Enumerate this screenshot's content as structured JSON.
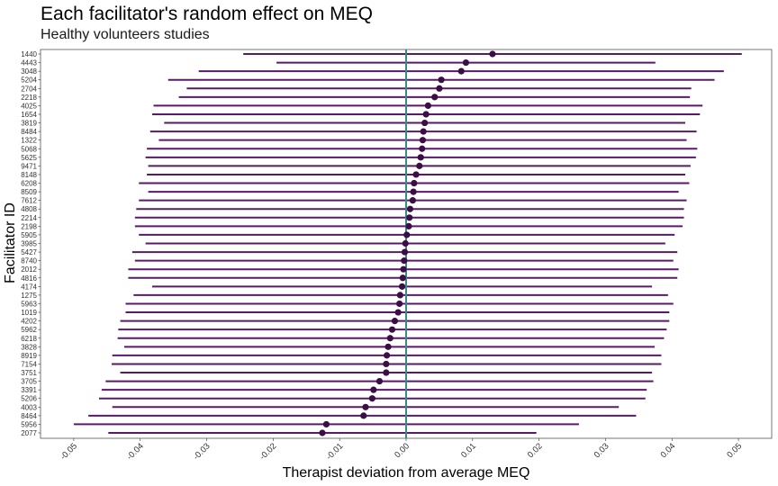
{
  "chart_data": {
    "type": "forest",
    "title": "Each facilitator's random effect on MEQ",
    "subtitle": "Healthy volunteers studies",
    "xlabel": "Therapist deviation from average MEQ",
    "ylabel": "Facilitator ID",
    "xlim": [
      -0.055,
      0.055
    ],
    "xticks": [
      "-0.05",
      "-0.04",
      "-0.03",
      "-0.02",
      "-0.01",
      "0.00",
      "0.01",
      "0.02",
      "0.03",
      "0.04",
      "0.05"
    ],
    "reference_line": 0.0,
    "colors": {
      "points": "#3b0f45",
      "intervals": "#5a1a68",
      "reference": "#3a8a8c"
    },
    "grid": false,
    "facilitators": [
      {
        "id": "1440",
        "estimate": 0.013,
        "lower": -0.0245,
        "upper": 0.0505
      },
      {
        "id": "4443",
        "estimate": 0.009,
        "lower": -0.0195,
        "upper": 0.0375
      },
      {
        "id": "3048",
        "estimate": 0.0083,
        "lower": -0.0312,
        "upper": 0.0478
      },
      {
        "id": "5204",
        "estimate": 0.0053,
        "lower": -0.0358,
        "upper": 0.0464
      },
      {
        "id": "2704",
        "estimate": 0.005,
        "lower": -0.033,
        "upper": 0.0429
      },
      {
        "id": "2218",
        "estimate": 0.0043,
        "lower": -0.0342,
        "upper": 0.0427
      },
      {
        "id": "4025",
        "estimate": 0.0033,
        "lower": -0.038,
        "upper": 0.0446
      },
      {
        "id": "1654",
        "estimate": 0.003,
        "lower": -0.0382,
        "upper": 0.0442
      },
      {
        "id": "3819",
        "estimate": 0.0028,
        "lower": -0.0364,
        "upper": 0.042
      },
      {
        "id": "8484",
        "estimate": 0.0026,
        "lower": -0.0385,
        "upper": 0.0437
      },
      {
        "id": "1322",
        "estimate": 0.0025,
        "lower": -0.0372,
        "upper": 0.0422
      },
      {
        "id": "5068",
        "estimate": 0.0024,
        "lower": -0.039,
        "upper": 0.0438
      },
      {
        "id": "5625",
        "estimate": 0.0022,
        "lower": -0.0392,
        "upper": 0.0436
      },
      {
        "id": "9471",
        "estimate": 0.002,
        "lower": -0.0388,
        "upper": 0.0428
      },
      {
        "id": "8148",
        "estimate": 0.0015,
        "lower": -0.039,
        "upper": 0.042
      },
      {
        "id": "6208",
        "estimate": 0.0012,
        "lower": -0.0402,
        "upper": 0.0426
      },
      {
        "id": "8509",
        "estimate": 0.0011,
        "lower": -0.0388,
        "upper": 0.041
      },
      {
        "id": "7612",
        "estimate": 0.001,
        "lower": -0.0402,
        "upper": 0.0422
      },
      {
        "id": "4808",
        "estimate": 0.0006,
        "lower": -0.0406,
        "upper": 0.0418
      },
      {
        "id": "2214",
        "estimate": 0.0005,
        "lower": -0.0408,
        "upper": 0.0418
      },
      {
        "id": "2198",
        "estimate": 0.0004,
        "lower": -0.0408,
        "upper": 0.0416
      },
      {
        "id": "5905",
        "estimate": 0.0001,
        "lower": -0.0402,
        "upper": 0.0404
      },
      {
        "id": "3985",
        "estimate": -0.0001,
        "lower": -0.0392,
        "upper": 0.039
      },
      {
        "id": "5427",
        "estimate": -0.0002,
        "lower": -0.0412,
        "upper": 0.0408
      },
      {
        "id": "8740",
        "estimate": -0.0003,
        "lower": -0.0408,
        "upper": 0.0402
      },
      {
        "id": "2012",
        "estimate": -0.0004,
        "lower": -0.0418,
        "upper": 0.041
      },
      {
        "id": "4816",
        "estimate": -0.0005,
        "lower": -0.0418,
        "upper": 0.0408
      },
      {
        "id": "4174",
        "estimate": -0.0006,
        "lower": -0.0382,
        "upper": 0.037
      },
      {
        "id": "1275",
        "estimate": -0.0009,
        "lower": -0.041,
        "upper": 0.0394
      },
      {
        "id": "5963",
        "estimate": -0.001,
        "lower": -0.0422,
        "upper": 0.0402
      },
      {
        "id": "1019",
        "estimate": -0.0012,
        "lower": -0.0422,
        "upper": 0.0396
      },
      {
        "id": "4202",
        "estimate": -0.0017,
        "lower": -0.043,
        "upper": 0.0396
      },
      {
        "id": "5962",
        "estimate": -0.0021,
        "lower": -0.0433,
        "upper": 0.0392
      },
      {
        "id": "6218",
        "estimate": -0.0024,
        "lower": -0.0434,
        "upper": 0.0388
      },
      {
        "id": "3828",
        "estimate": -0.0027,
        "lower": -0.0424,
        "upper": 0.0374
      },
      {
        "id": "8919",
        "estimate": -0.0029,
        "lower": -0.0442,
        "upper": 0.0384
      },
      {
        "id": "7154",
        "estimate": -0.003,
        "lower": -0.0443,
        "upper": 0.0384
      },
      {
        "id": "3751",
        "estimate": -0.003,
        "lower": -0.043,
        "upper": 0.037
      },
      {
        "id": "3705",
        "estimate": -0.004,
        "lower": -0.0452,
        "upper": 0.0372
      },
      {
        "id": "3391",
        "estimate": -0.0049,
        "lower": -0.0458,
        "upper": 0.0362
      },
      {
        "id": "5206",
        "estimate": -0.0051,
        "lower": -0.0462,
        "upper": 0.036
      },
      {
        "id": "4003",
        "estimate": -0.0061,
        "lower": -0.0442,
        "upper": 0.032
      },
      {
        "id": "8464",
        "estimate": -0.0064,
        "lower": -0.0478,
        "upper": 0.0346
      },
      {
        "id": "5956",
        "estimate": -0.012,
        "lower": -0.05,
        "upper": 0.026
      },
      {
        "id": "2077",
        "estimate": -0.0126,
        "lower": -0.0448,
        "upper": 0.0196
      }
    ]
  }
}
